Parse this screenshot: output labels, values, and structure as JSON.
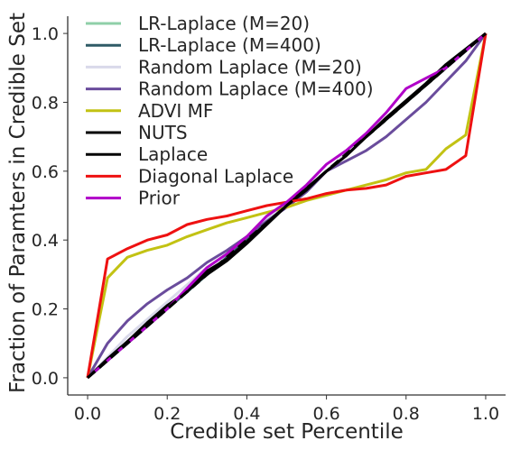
{
  "chart_data": {
    "type": "line",
    "title": "",
    "xlabel": "Credible set Percentile",
    "ylabel": "Fraction of Paramters in Credible Set",
    "xlim": [
      -0.05,
      1.05
    ],
    "ylim": [
      -0.05,
      1.05
    ],
    "xticks": [
      0.0,
      0.2,
      0.4,
      0.6,
      0.8,
      1.0
    ],
    "yticks": [
      0.0,
      0.2,
      0.4,
      0.6,
      0.8,
      1.0
    ],
    "xtick_labels": [
      "0.0",
      "0.2",
      "0.4",
      "0.6",
      "0.8",
      "1.0"
    ],
    "ytick_labels": [
      "0.0",
      "0.2",
      "0.4",
      "0.6",
      "0.8",
      "1.0"
    ],
    "grid": false,
    "legend_position": "top-left",
    "reference_line": {
      "style": "dashed",
      "color": "#000000",
      "x": [
        0.0,
        1.0
      ],
      "y": [
        0.0,
        1.0
      ]
    },
    "series": [
      {
        "name": "LR-Laplace (M=20)",
        "color": "#8fcfa8",
        "x": [
          0.0,
          0.05,
          0.1,
          0.15,
          0.2,
          0.25,
          0.3,
          0.35,
          0.4,
          0.45,
          0.5,
          0.55,
          0.6,
          0.65,
          0.7,
          0.75,
          0.8,
          0.85,
          0.9,
          0.95,
          1.0
        ],
        "y": [
          0.0,
          0.05,
          0.1,
          0.15,
          0.2,
          0.25,
          0.3,
          0.35,
          0.4,
          0.45,
          0.5,
          0.55,
          0.6,
          0.65,
          0.7,
          0.75,
          0.8,
          0.85,
          0.9,
          0.95,
          1.0
        ]
      },
      {
        "name": "LR-Laplace (M=400)",
        "color": "#2f5b66",
        "x": [
          0.0,
          0.05,
          0.1,
          0.15,
          0.2,
          0.25,
          0.3,
          0.35,
          0.4,
          0.45,
          0.5,
          0.55,
          0.6,
          0.65,
          0.7,
          0.75,
          0.8,
          0.85,
          0.9,
          0.95,
          1.0
        ],
        "y": [
          0.0,
          0.05,
          0.1,
          0.15,
          0.2,
          0.25,
          0.3,
          0.35,
          0.4,
          0.45,
          0.5,
          0.55,
          0.6,
          0.65,
          0.7,
          0.75,
          0.8,
          0.85,
          0.9,
          0.95,
          1.0
        ]
      },
      {
        "name": "Random Laplace (M=20)",
        "color": "#d9d9ea",
        "x": [
          0.0,
          0.05,
          0.1,
          0.15,
          0.2,
          0.25,
          0.3,
          0.35,
          0.4,
          0.45,
          0.5,
          0.55,
          0.6,
          0.65,
          0.7,
          0.75,
          0.8,
          0.85,
          0.9,
          0.95,
          1.0
        ],
        "y": [
          0.0,
          0.06,
          0.12,
          0.17,
          0.22,
          0.27,
          0.32,
          0.36,
          0.41,
          0.46,
          0.51,
          0.55,
          0.6,
          0.65,
          0.7,
          0.75,
          0.8,
          0.85,
          0.9,
          0.95,
          1.0
        ]
      },
      {
        "name": "Random Laplace (M=400)",
        "color": "#6a4c9c",
        "x": [
          0.0,
          0.05,
          0.1,
          0.15,
          0.2,
          0.25,
          0.3,
          0.35,
          0.4,
          0.45,
          0.5,
          0.55,
          0.6,
          0.65,
          0.7,
          0.75,
          0.8,
          0.85,
          0.9,
          0.95,
          1.0
        ],
        "y": [
          0.0,
          0.1,
          0.165,
          0.215,
          0.255,
          0.29,
          0.335,
          0.37,
          0.41,
          0.455,
          0.495,
          0.54,
          0.6,
          0.63,
          0.66,
          0.7,
          0.75,
          0.8,
          0.86,
          0.92,
          1.0
        ]
      },
      {
        "name": "ADVI MF",
        "color": "#c2c213",
        "x": [
          0.0,
          0.05,
          0.1,
          0.15,
          0.2,
          0.25,
          0.3,
          0.35,
          0.4,
          0.45,
          0.5,
          0.55,
          0.6,
          0.65,
          0.7,
          0.75,
          0.8,
          0.85,
          0.9,
          0.95,
          1.0
        ],
        "y": [
          0.0,
          0.29,
          0.35,
          0.37,
          0.385,
          0.41,
          0.43,
          0.45,
          0.465,
          0.48,
          0.495,
          0.515,
          0.53,
          0.545,
          0.56,
          0.575,
          0.595,
          0.605,
          0.665,
          0.705,
          1.0
        ]
      },
      {
        "name": "NUTS",
        "color": "#000000",
        "x": [
          0.0,
          0.05,
          0.1,
          0.15,
          0.2,
          0.25,
          0.3,
          0.35,
          0.4,
          0.45,
          0.5,
          0.55,
          0.6,
          0.65,
          0.7,
          0.75,
          0.8,
          0.85,
          0.9,
          0.95,
          1.0
        ],
        "y": [
          0.0,
          0.05,
          0.105,
          0.16,
          0.21,
          0.25,
          0.31,
          0.345,
          0.395,
          0.45,
          0.5,
          0.55,
          0.6,
          0.645,
          0.7,
          0.75,
          0.8,
          0.85,
          0.9,
          0.95,
          1.0
        ]
      },
      {
        "name": "Laplace",
        "color": "#000000",
        "x": [
          0.0,
          0.05,
          0.1,
          0.15,
          0.2,
          0.25,
          0.3,
          0.35,
          0.4,
          0.45,
          0.5,
          0.55,
          0.6,
          0.65,
          0.7,
          0.75,
          0.8,
          0.85,
          0.9,
          0.95,
          1.0
        ],
        "y": [
          0.0,
          0.055,
          0.105,
          0.155,
          0.205,
          0.255,
          0.3,
          0.34,
          0.39,
          0.445,
          0.5,
          0.545,
          0.6,
          0.645,
          0.7,
          0.755,
          0.805,
          0.855,
          0.91,
          0.955,
          1.0
        ]
      },
      {
        "name": "Diagonal Laplace",
        "color": "#ee1111",
        "x": [
          0.0,
          0.05,
          0.1,
          0.15,
          0.2,
          0.25,
          0.3,
          0.35,
          0.4,
          0.45,
          0.5,
          0.55,
          0.6,
          0.65,
          0.7,
          0.75,
          0.8,
          0.85,
          0.9,
          0.95,
          1.0
        ],
        "y": [
          0.0,
          0.345,
          0.375,
          0.4,
          0.415,
          0.445,
          0.46,
          0.47,
          0.485,
          0.5,
          0.51,
          0.52,
          0.535,
          0.545,
          0.55,
          0.56,
          0.585,
          0.595,
          0.605,
          0.645,
          1.0
        ]
      },
      {
        "name": "Prior",
        "color": "#b000c8",
        "x": [
          0.0,
          0.05,
          0.1,
          0.15,
          0.2,
          0.25,
          0.3,
          0.35,
          0.4,
          0.45,
          0.5,
          0.55,
          0.6,
          0.65,
          0.7,
          0.75,
          0.8,
          0.85,
          0.9,
          0.95,
          1.0
        ],
        "y": [
          0.0,
          0.05,
          0.1,
          0.15,
          0.2,
          0.26,
          0.32,
          0.36,
          0.41,
          0.47,
          0.51,
          0.56,
          0.62,
          0.66,
          0.71,
          0.77,
          0.84,
          0.87,
          0.9,
          0.95,
          1.0
        ]
      }
    ]
  }
}
